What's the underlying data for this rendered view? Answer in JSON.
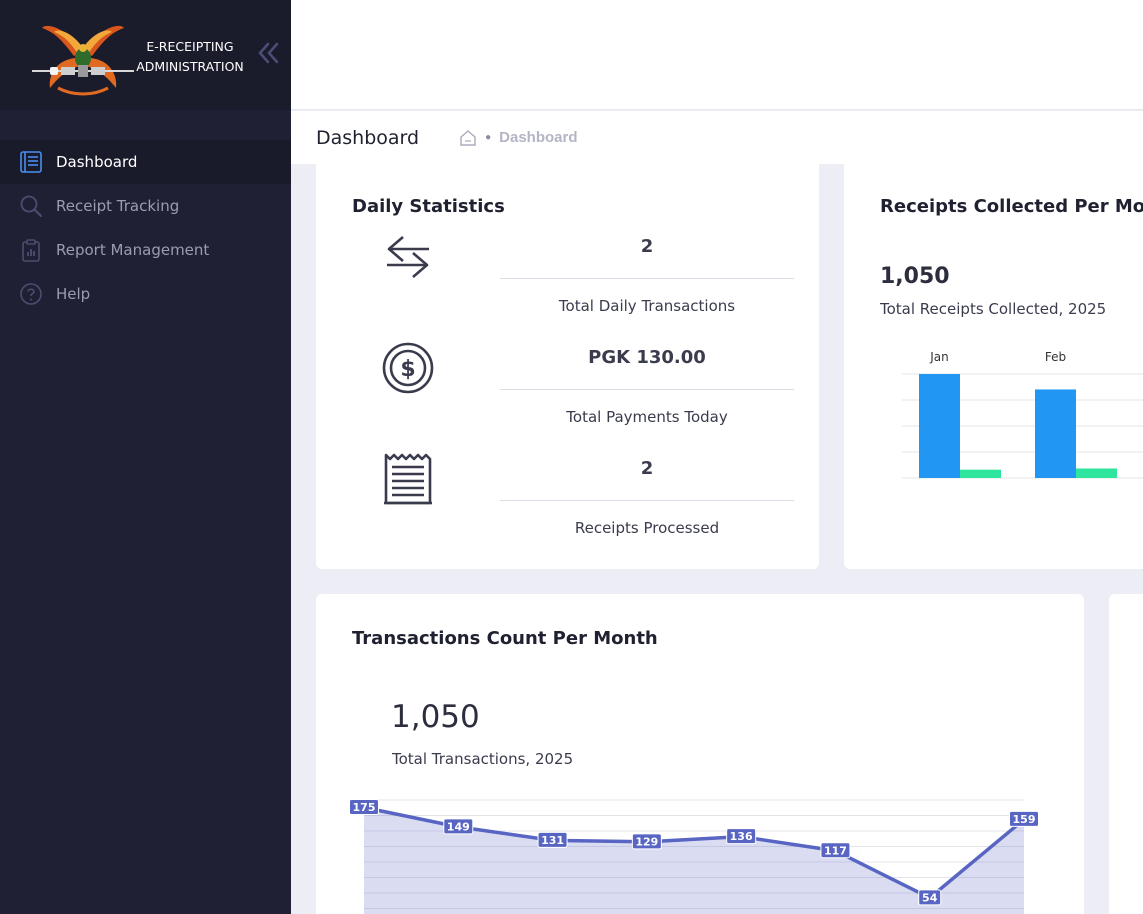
{
  "brand": {
    "line1": "E-RECEIPTING",
    "line2": "ADMINISTRATION"
  },
  "sidebar": {
    "items": [
      {
        "label": "Dashboard",
        "icon": "list-icon",
        "active": true
      },
      {
        "label": "Receipt Tracking",
        "icon": "search-icon"
      },
      {
        "label": "Report Management",
        "icon": "clipboard-chart-icon"
      },
      {
        "label": "Help",
        "icon": "help-circle-icon"
      }
    ]
  },
  "header": {
    "title": "Dashboard",
    "breadcrumb": {
      "home_icon": "home-icon",
      "current": "Dashboard"
    }
  },
  "daily_stats": {
    "title": "Daily Statistics",
    "items": [
      {
        "value": "2",
        "label": "Total Daily Transactions",
        "icon": "transfer-arrows-icon"
      },
      {
        "value": "PGK 130.00",
        "label": "Total Payments Today",
        "icon": "dollar-coin-icon"
      },
      {
        "value": "2",
        "label": "Receipts Processed",
        "icon": "receipt-icon"
      }
    ]
  },
  "receipts_card": {
    "title": "Receipts Collected Per Month",
    "total": "1,050",
    "total_label": "Total Receipts Collected, 2025"
  },
  "transactions_card": {
    "title": "Transactions Count Per Month",
    "total": "1,050",
    "total_label": "Total Transactions, 2025"
  },
  "colors": {
    "sidebar": "#1f2033",
    "accent_blue": "#2196f3",
    "accent_green": "#2ee59d",
    "line": "#5865c2"
  },
  "chart_data": [
    {
      "type": "bar",
      "categories": [
        "Jan",
        "Feb"
      ],
      "series": [
        {
          "values": [
            175,
            149
          ],
          "color": "#2196f3"
        },
        {
          "values": [
            14,
            16
          ],
          "color": "#2ee59d"
        }
      ],
      "ylim": [
        0,
        175
      ],
      "grid": true
    },
    {
      "type": "area",
      "x": [
        1,
        2,
        3,
        4,
        5,
        6,
        7,
        8
      ],
      "values": [
        175,
        149,
        131,
        129,
        136,
        117,
        54,
        159
      ],
      "data_labels": [
        "175",
        "149",
        "131",
        "129",
        "136",
        "117",
        "54",
        "159"
      ],
      "ylim": [
        40,
        185
      ],
      "grid": true
    }
  ]
}
